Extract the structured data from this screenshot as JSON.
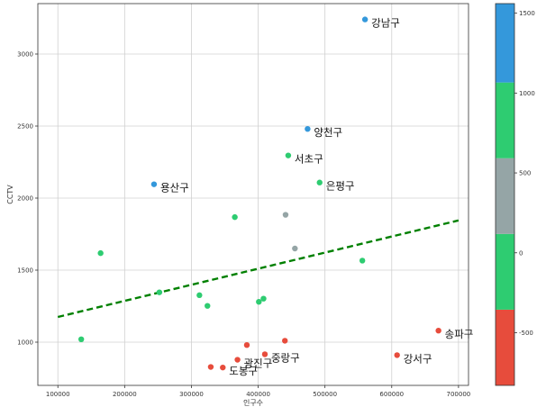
{
  "chart_data": {
    "type": "scatter",
    "title": "",
    "xlabel": "인구수",
    "ylabel": "CCTV",
    "xlim": [
      70000,
      715000
    ],
    "ylim": [
      700,
      3350
    ],
    "x_ticks": [
      100000,
      200000,
      300000,
      400000,
      500000,
      600000,
      700000
    ],
    "x_tick_labels": [
      "100000",
      "200000",
      "300000",
      "400000",
      "500000",
      "600000",
      "700000"
    ],
    "y_ticks": [
      1000,
      1500,
      2000,
      2500,
      3000
    ],
    "y_tick_labels": [
      "1000",
      "1500",
      "2000",
      "2500",
      "3000"
    ],
    "grid": true,
    "trend_line": {
      "x": [
        100000,
        700000
      ],
      "y": [
        1175,
        1845
      ],
      "color": "#008000",
      "style": "dashed"
    },
    "points": [
      {
        "x": 560000,
        "y": 3240,
        "color": "#3498db",
        "label": "강남구"
      },
      {
        "x": 474000,
        "y": 2480,
        "color": "#3498db",
        "label": "양천구"
      },
      {
        "x": 244000,
        "y": 2096,
        "color": "#3498db",
        "label": "용산구"
      },
      {
        "x": 445000,
        "y": 2296,
        "color": "#2ecc71",
        "label": "서초구"
      },
      {
        "x": 492000,
        "y": 2108,
        "color": "#2ecc71",
        "label": "은평구"
      },
      {
        "x": 365000,
        "y": 1868,
        "color": "#2ecc71",
        "label": ""
      },
      {
        "x": 164000,
        "y": 1618,
        "color": "#2ecc71",
        "label": ""
      },
      {
        "x": 556000,
        "y": 1566,
        "color": "#2ecc71",
        "label": ""
      },
      {
        "x": 252000,
        "y": 1346,
        "color": "#2ecc71",
        "label": ""
      },
      {
        "x": 312000,
        "y": 1326,
        "color": "#2ecc71",
        "label": ""
      },
      {
        "x": 408000,
        "y": 1302,
        "color": "#2ecc71",
        "label": ""
      },
      {
        "x": 401000,
        "y": 1280,
        "color": "#2ecc71",
        "label": ""
      },
      {
        "x": 324000,
        "y": 1252,
        "color": "#2ecc71",
        "label": ""
      },
      {
        "x": 135000,
        "y": 1020,
        "color": "#2ecc71",
        "label": ""
      },
      {
        "x": 441000,
        "y": 1884,
        "color": "#95a5a6",
        "label": ""
      },
      {
        "x": 455000,
        "y": 1650,
        "color": "#95a5a6",
        "label": ""
      },
      {
        "x": 670000,
        "y": 1080,
        "color": "#e74c3c",
        "label": "송파구"
      },
      {
        "x": 608000,
        "y": 910,
        "color": "#e74c3c",
        "label": "강서구"
      },
      {
        "x": 410000,
        "y": 916,
        "color": "#e74c3c",
        "label": "중랑구"
      },
      {
        "x": 369000,
        "y": 878,
        "color": "#e74c3c",
        "label": "광진구"
      },
      {
        "x": 347000,
        "y": 824,
        "color": "#e74c3c",
        "label": "도봉구"
      },
      {
        "x": 440000,
        "y": 1010,
        "color": "#e74c3c",
        "label": ""
      },
      {
        "x": 383000,
        "y": 980,
        "color": "#e74c3c",
        "label": ""
      },
      {
        "x": 329000,
        "y": 828,
        "color": "#e74c3c",
        "label": ""
      }
    ],
    "colorbar": {
      "ticks": [
        -500,
        0,
        500,
        1000,
        1500
      ],
      "tick_labels": [
        "-500",
        "0",
        "500",
        "1000",
        "1500"
      ],
      "range": [
        -830,
        1560
      ],
      "bands": [
        {
          "from": -830,
          "to": -356,
          "color": "#e74c3c"
        },
        {
          "from": -356,
          "to": 118,
          "color": "#2ecc71"
        },
        {
          "from": 118,
          "to": 592,
          "color": "#95a5a6"
        },
        {
          "from": 592,
          "to": 1066,
          "color": "#2ecc71"
        },
        {
          "from": 1066,
          "to": 1560,
          "color": "#3498db"
        }
      ]
    }
  }
}
